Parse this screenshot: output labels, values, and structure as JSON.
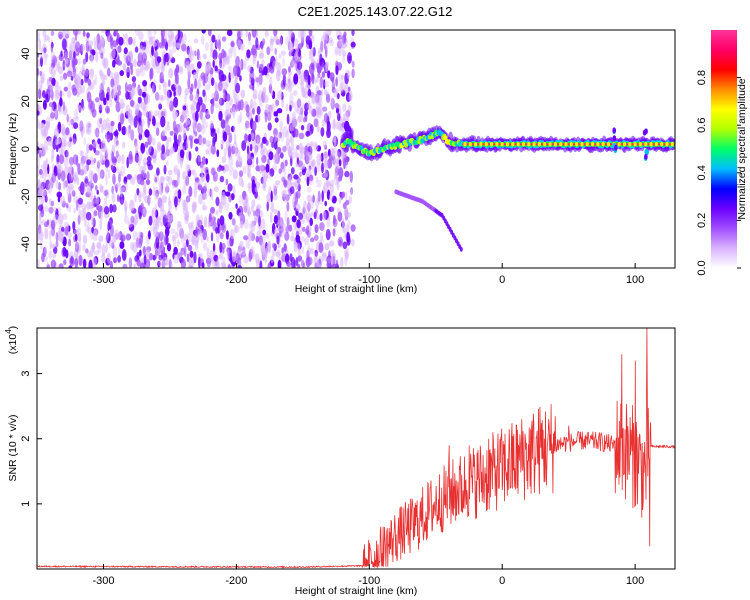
{
  "title": "C2E1.2025.143.07.22.G12",
  "chart_data": [
    {
      "type": "heatmap",
      "xlabel": "Height of straight line (km)",
      "ylabel": "Frequency (Hz)",
      "xlim": [
        -350,
        130
      ],
      "ylim": [
        -50,
        50
      ],
      "x_ticks": [
        -300,
        -200,
        -100,
        0,
        100
      ],
      "y_ticks": [
        -40,
        -20,
        0,
        20,
        40
      ],
      "colorbar": {
        "label": "Normalized spectral amplitude",
        "range": [
          0,
          1
        ],
        "ticks": [
          "0.0",
          "0.2",
          "0.4",
          "0.6",
          "0.8"
        ],
        "colors": [
          "#ffffff",
          "#d9b3ff",
          "#a04dff",
          "#6a00ff",
          "#0000ff",
          "#00bfff",
          "#00ff66",
          "#b3ff00",
          "#ffff00",
          "#ff8c00",
          "#ff0000",
          "#ff0066",
          "#ff3399"
        ]
      },
      "description_series": [
        {
          "name": "noise",
          "x_range": [
            -350,
            -112
          ],
          "level": 0.15
        },
        {
          "name": "signal",
          "points": [
            [
              -118,
              4
            ],
            [
              -110,
              1
            ],
            [
              -100,
              -2
            ],
            [
              -90,
              0
            ],
            [
              -75,
              2
            ],
            [
              -60,
              4
            ],
            [
              -48,
              7
            ],
            [
              -40,
              3
            ],
            [
              -30,
              2
            ],
            [
              0,
              2
            ],
            [
              50,
              2
            ],
            [
              130,
              2
            ]
          ],
          "level": 0.9
        },
        {
          "name": "branch",
          "points": [
            [
              -80,
              -18
            ],
            [
              -60,
              -22
            ],
            [
              -45,
              -28
            ],
            [
              -35,
              -38
            ],
            [
              -30,
              -43
            ]
          ],
          "level": 0.35
        }
      ]
    },
    {
      "type": "line",
      "xlabel": "Height of straight line (km)",
      "ylabel": "SNR (10 * v/v)",
      "y_scale_label": "(x10",
      "y_scale_exp": "4",
      "xlim": [
        -350,
        130
      ],
      "ylim": [
        0,
        3.7
      ],
      "x_ticks": [
        -300,
        -200,
        -100,
        0,
        100
      ],
      "y_ticks": [
        1,
        2,
        3
      ],
      "color": "#e83030",
      "envelope": [
        [
          -350,
          0.04
        ],
        [
          -150,
          0.03
        ],
        [
          -105,
          0.05
        ],
        [
          -95,
          0.2
        ],
        [
          -80,
          0.5
        ],
        [
          -65,
          0.7
        ],
        [
          -50,
          1.0
        ],
        [
          -35,
          1.2
        ],
        [
          -20,
          1.35
        ],
        [
          -10,
          1.45
        ],
        [
          0,
          1.55
        ],
        [
          15,
          1.7
        ],
        [
          30,
          1.85
        ],
        [
          45,
          1.93
        ],
        [
          60,
          1.97
        ],
        [
          75,
          1.95
        ],
        [
          85,
          1.9
        ],
        [
          92,
          1.85
        ],
        [
          100,
          1.7
        ],
        [
          107,
          1.5
        ],
        [
          112,
          1.88
        ],
        [
          130,
          1.88
        ]
      ],
      "spikes": [
        [
          -40,
          1.9
        ],
        [
          -25,
          1.9
        ],
        [
          -10,
          2.0
        ],
        [
          15,
          2.0
        ],
        [
          35,
          2.3
        ],
        [
          50,
          2.2
        ],
        [
          90,
          3.3
        ],
        [
          100,
          3.2
        ],
        [
          109,
          3.7
        ],
        [
          111,
          0.35
        ]
      ]
    }
  ]
}
